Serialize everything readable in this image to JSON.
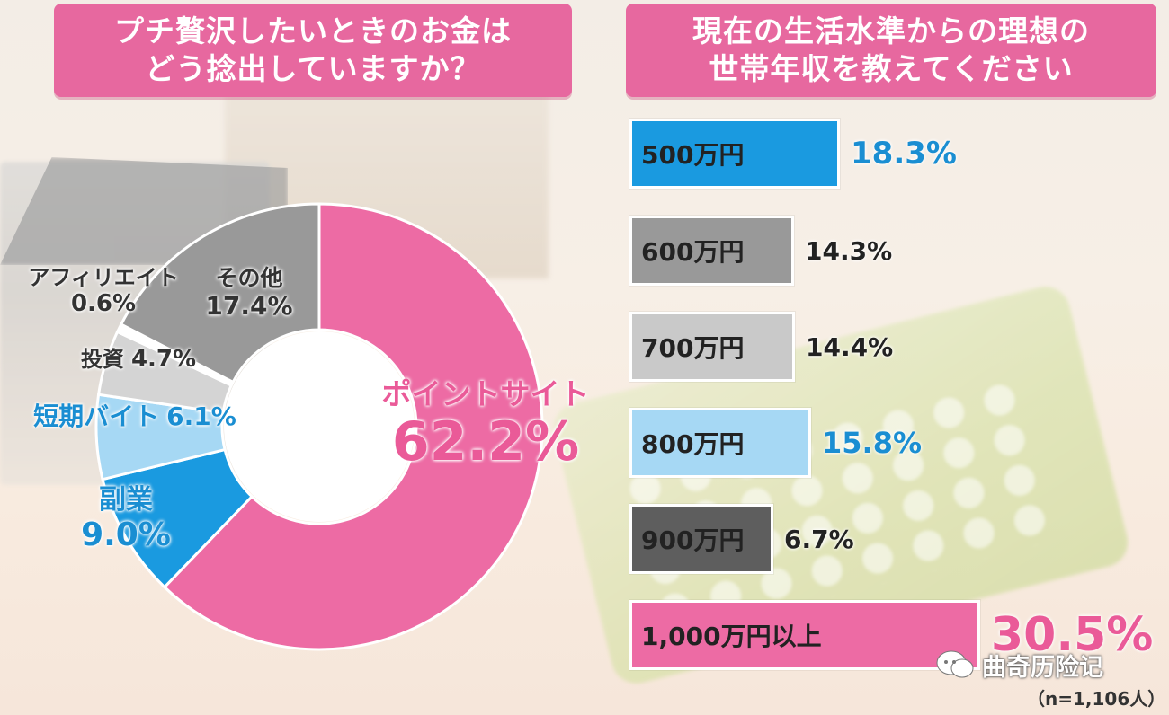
{
  "left_panel": {
    "title": "プチ贅沢したいときのお金は\nどう捻出していますか？"
  },
  "right_panel": {
    "title": "現在の生活水準からの理想の\n世帯年収を教えてください"
  },
  "watermark": "曲奇历险记",
  "sample_size": "（n=1,106人）",
  "colors": {
    "pink": "#ed6ba4",
    "blue": "#1a9ae0",
    "light_blue": "#a6d8f4",
    "gray": "#999999",
    "light_gray": "#c9c9c9",
    "dark_gray": "#5e5e5e",
    "white": "#ffffff"
  },
  "chart_data": [
    {
      "type": "pie",
      "variant": "donut",
      "categories": [
        "ポイントサイト",
        "副業",
        "短期バイト",
        "投資",
        "アフィリエイト",
        "その他"
      ],
      "values": [
        62.2,
        9.0,
        6.1,
        4.7,
        0.6,
        17.4
      ],
      "value_labels": [
        "62.2%",
        "9.0%",
        "6.1%",
        "4.7%",
        "0.6%",
        "17.4%"
      ],
      "series_colors": [
        "#ed6ba4",
        "#1a9ae0",
        "#a6d8f4",
        "#d4d4d4",
        "#ffffff",
        "#999999"
      ],
      "label_colors": [
        "#ea5a98",
        "#1a8ed2",
        "#1a8ed2",
        "#333333",
        "#333333",
        "#333333"
      ]
    },
    {
      "type": "bar",
      "orientation": "horizontal",
      "categories": [
        "500万円",
        "600万円",
        "700万円",
        "800万円",
        "900万円",
        "1,000万円以上"
      ],
      "values": [
        18.3,
        14.3,
        14.4,
        15.8,
        6.7,
        30.5
      ],
      "value_labels": [
        "18.3%",
        "14.3%",
        "14.4%",
        "15.8%",
        "6.7%",
        "30.5%"
      ],
      "bar_colors": [
        "#1a9ae0",
        "#999999",
        "#c9c9c9",
        "#a6d8f4",
        "#5e5e5e",
        "#ed6ba4"
      ],
      "value_label_colors": [
        "#1a8ed2",
        "#222222",
        "#222222",
        "#1a8ed2",
        "#222222",
        "#ea5a98"
      ]
    }
  ]
}
